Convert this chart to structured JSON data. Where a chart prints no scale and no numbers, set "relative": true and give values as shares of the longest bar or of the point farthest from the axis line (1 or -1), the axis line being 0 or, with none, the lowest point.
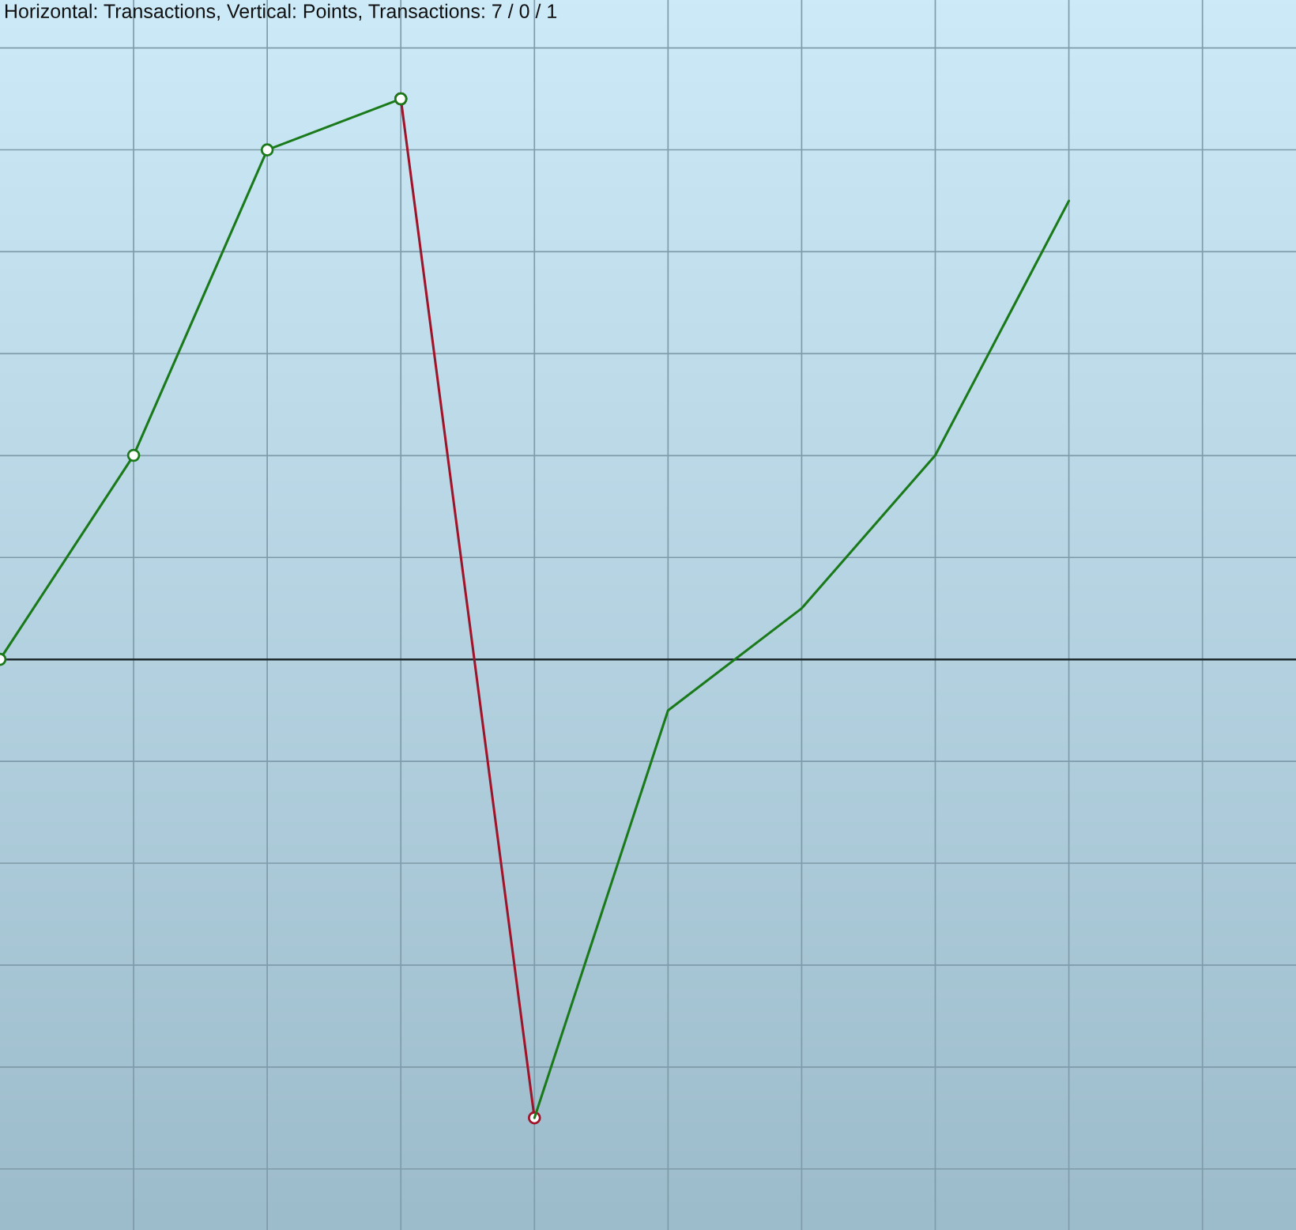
{
  "chart_data": {
    "type": "line",
    "title": "Horizontal: Transactions, Vertical: Points, Transactions: 7 / 0 / 1",
    "relative": true,
    "grid": true,
    "categories": [
      null,
      null,
      null,
      null,
      null,
      null,
      null,
      null,
      null
    ],
    "series": [
      {
        "color": "#a0142a",
        "values": [
          null,
          null,
          null,
          1,
          -0.818,
          null,
          null,
          null,
          null
        ],
        "marker": "circle"
      },
      {
        "color": "#1a7a1a",
        "values": [
          0,
          0.364,
          0.909,
          1,
          null,
          null,
          null,
          null,
          null
        ],
        "marker": "circle"
      },
      {
        "color": "#1a7a1a",
        "values": [
          null,
          null,
          null,
          null,
          -0.818,
          -0.091,
          0.091,
          0.364,
          0.818
        ],
        "marker": "none"
      }
    ]
  }
}
